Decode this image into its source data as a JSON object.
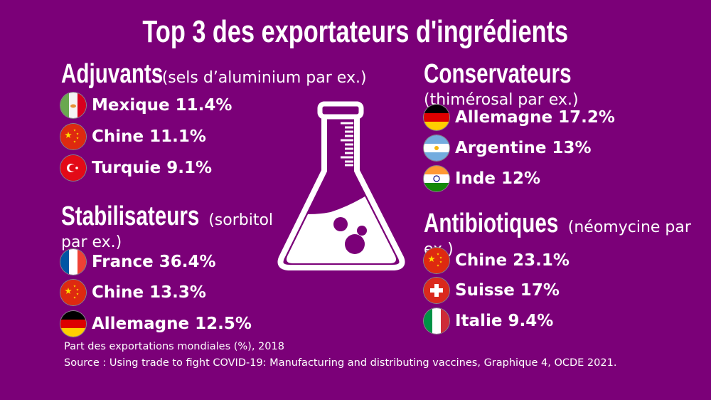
{
  "title": "Top 3 des exportateurs d'ingrédients",
  "colors": {
    "background": "#7b0078",
    "text": "#ffffff"
  },
  "icon": "erlenmeyer-flask-icon",
  "groups": {
    "adjuvants": {
      "name": "Adjuvants",
      "example": "(sels d’aluminium par ex.)",
      "items": [
        {
          "flag": "mexico",
          "label": "Mexique 11.4%"
        },
        {
          "flag": "china",
          "label": "Chine 11.1%"
        },
        {
          "flag": "turkey",
          "label": "Turquie 9.1%"
        }
      ]
    },
    "stabilisateurs": {
      "name": "Stabilisateurs",
      "example": "(sorbitol par ex.)",
      "items": [
        {
          "flag": "france",
          "label": "France 36.4%"
        },
        {
          "flag": "china",
          "label": "Chine 13.3%"
        },
        {
          "flag": "germany",
          "label": "Allemagne 12.5%"
        }
      ]
    },
    "conservateurs": {
      "name": "Conservateurs",
      "example": "(thimérosal par ex.)",
      "items": [
        {
          "flag": "germany",
          "label": "Allemagne 17.2%"
        },
        {
          "flag": "argentina",
          "label": "Argentine 13%"
        },
        {
          "flag": "india",
          "label": "Inde 12%"
        }
      ]
    },
    "antibiotiques": {
      "name": "Antibiotiques",
      "example": "(néomycine par ex.)",
      "items": [
        {
          "flag": "china",
          "label": "Chine 23.1%"
        },
        {
          "flag": "switzerland",
          "label": "Suisse 17%"
        },
        {
          "flag": "italy",
          "label": "Italie 9.4%"
        }
      ]
    }
  },
  "footer": {
    "note": "Part des exportations mondiales (%), 2018",
    "source": "Source : Using trade to fight COVID-19: Manufacturing and distributing vaccines, Graphique 4, OCDE 2021."
  }
}
